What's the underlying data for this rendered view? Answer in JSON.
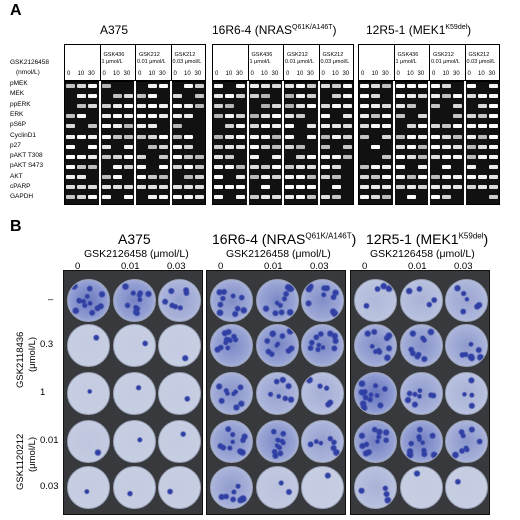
{
  "panelA": {
    "letter": "A",
    "cell_lines": [
      {
        "name": "A375",
        "superscript": ""
      },
      {
        "name": "16R6-4 (NRAS",
        "superscript": "Q61K/A146T",
        "suffix": ")"
      },
      {
        "name": "12R5-1 (MEK1",
        "superscript": "K59del",
        "suffix": ")"
      }
    ],
    "drug_label_1": "GSK2126458",
    "drug_label_2": "(nmol/L)",
    "treatment_headers": [
      {
        "line1": "GSK436",
        "line2": "1 μmol/L"
      },
      {
        "line1": "GSK212",
        "line2": "0.01 μmol/L"
      },
      {
        "line1": "GSK212",
        "line2": "0.03 μmol/L"
      }
    ],
    "doses": [
      "0",
      "10",
      "30"
    ],
    "proteins": [
      "pMEK",
      "MEK",
      "ppERK",
      "ERK",
      "pS6P",
      "CyclinD1",
      "p27",
      "pAKT T308",
      "pAKT S473",
      "AKT",
      "cPARP",
      "GAPDH"
    ]
  },
  "panelB": {
    "letter": "B",
    "cell_lines": [
      {
        "name": "A375",
        "superscript": ""
      },
      {
        "name": "16R6-4 (NRAS",
        "superscript": "Q61K/A146T",
        "suffix": ")"
      },
      {
        "name": "12R5-1 (MEK1",
        "superscript": "K59del",
        "suffix": ")"
      }
    ],
    "column_drug": "GSK2126458 (μmol/L)",
    "column_doses": [
      "0",
      "0.01",
      "0.03"
    ],
    "row_doses": [
      "–",
      "0.3",
      "1",
      "0.01",
      "0.03"
    ],
    "row_drug_1": "GSK2118436",
    "row_drug_1_unit": "(μmol/L)",
    "row_drug_2": "GSK1120212",
    "row_drug_2_unit": "(μmol/L)",
    "colors": {
      "stain_dark": "#2f3fa3",
      "stain_mid": "#6a79c4",
      "dish_light": "#c9d0e3",
      "plate": "#38393d"
    },
    "density": [
      [
        [
          0.9,
          0.8,
          0.5
        ],
        [
          0.7,
          0.75,
          0.7
        ],
        [
          0.25,
          0.3,
          0.45
        ]
      ],
      [
        [
          0.05,
          0.05,
          0.05
        ],
        [
          0.75,
          0.8,
          0.75
        ],
        [
          0.7,
          0.65,
          0.55
        ]
      ],
      [
        [
          0.05,
          0.05,
          0.05
        ],
        [
          0.65,
          0.5,
          0.35
        ],
        [
          0.95,
          0.55,
          0.3
        ]
      ],
      [
        [
          0.1,
          0.05,
          0.05
        ],
        [
          0.7,
          0.75,
          0.5
        ],
        [
          0.85,
          0.85,
          0.6
        ]
      ],
      [
        [
          0.05,
          0.05,
          0.05
        ],
        [
          0.55,
          0.15,
          0.05
        ],
        [
          0.3,
          0.05,
          0.05
        ]
      ]
    ]
  }
}
